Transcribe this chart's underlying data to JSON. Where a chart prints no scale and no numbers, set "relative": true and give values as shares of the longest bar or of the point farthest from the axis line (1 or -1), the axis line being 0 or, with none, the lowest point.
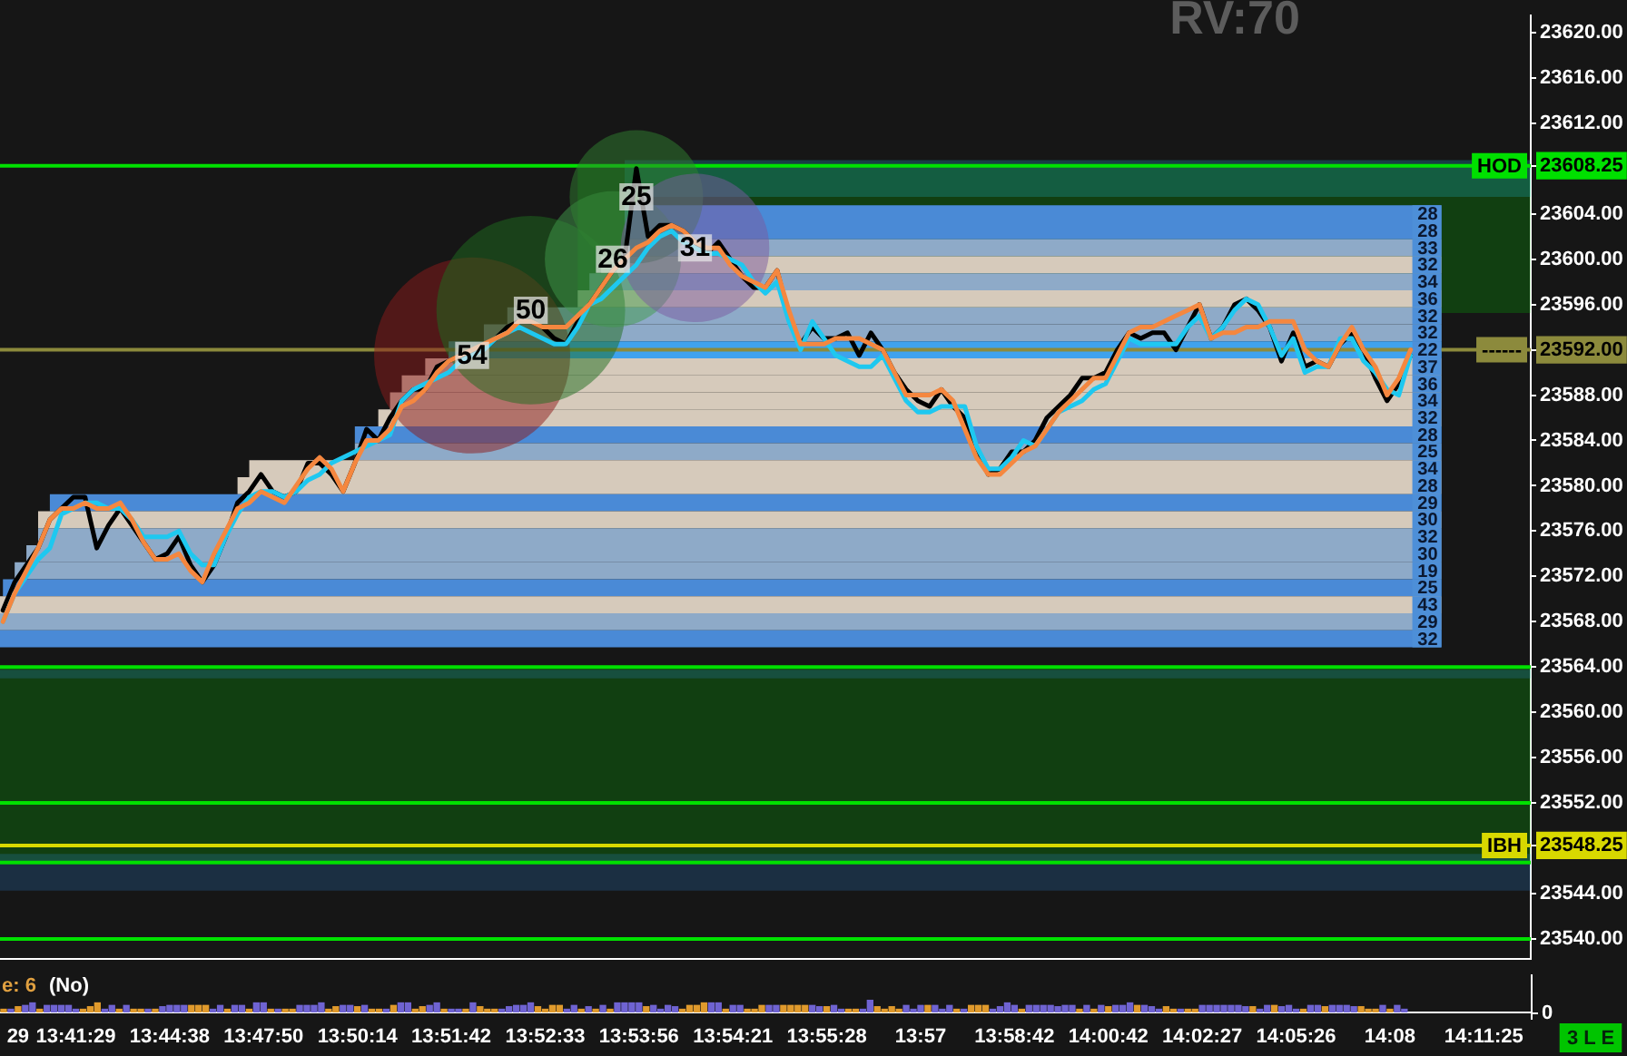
{
  "chart_data": [
    {
      "type": "line",
      "tick_labels": "y",
      "annotations": [
        "RV:70"
      ],
      "categories": [
        null,
        null,
        null,
        null,
        null,
        null,
        null,
        null,
        null,
        null,
        null,
        null,
        null,
        null,
        null,
        null,
        null,
        null,
        null,
        null,
        null,
        null,
        null,
        null,
        null,
        null,
        null,
        null,
        null,
        null,
        null,
        null,
        null,
        null,
        null,
        null,
        null,
        null,
        null,
        null,
        null,
        null,
        null,
        null,
        null,
        null,
        null,
        null,
        null,
        null,
        null,
        null,
        null,
        null,
        null,
        null,
        null,
        null,
        null,
        null,
        null,
        null,
        null,
        null,
        null,
        null,
        null,
        null,
        null,
        null,
        null,
        null,
        null,
        null,
        null,
        null,
        null,
        null,
        null,
        null,
        null,
        null,
        null,
        null,
        null,
        null,
        null,
        null,
        null,
        null,
        null,
        null,
        null,
        null,
        null,
        null,
        null,
        null,
        null,
        null,
        null,
        null,
        null,
        null,
        null,
        null,
        null,
        null,
        null,
        null,
        null,
        null,
        null,
        null,
        null,
        null,
        null,
        null,
        null,
        null,
        null,
        null,
        null,
        null,
        null,
        null,
        null,
        null,
        null,
        null,
        null
      ],
      "series": [
        {
          "type": "bubble",
          "values": [
            null,
            null,
            null,
            null,
            null,
            null,
            null,
            null,
            null,
            null,
            null,
            null,
            null,
            null,
            null,
            null,
            null,
            null,
            null,
            null,
            null,
            null,
            null,
            null,
            null,
            null,
            null,
            null,
            null,
            null,
            null,
            null,
            null,
            null,
            null,
            null,
            null,
            null,
            null,
            null,
            23591.5,
            null,
            null,
            null,
            null,
            23595.5,
            null,
            null,
            null,
            null,
            null,
            null,
            23600,
            null,
            23605.5,
            null,
            null,
            null,
            null,
            23601,
            null,
            null,
            null,
            null,
            null,
            null,
            null,
            null,
            null,
            null,
            null,
            null,
            null,
            null,
            null,
            null,
            null,
            null,
            null,
            null,
            null,
            null,
            null,
            null,
            null,
            null,
            null,
            null,
            null,
            null,
            null,
            null,
            null,
            null,
            null,
            null,
            null,
            null,
            null,
            null,
            null,
            null,
            null,
            null,
            null,
            null,
            null,
            null,
            null,
            null,
            null,
            null,
            null,
            null,
            null,
            null,
            null,
            null,
            null,
            null,
            null,
            null,
            null,
            null,
            null,
            null,
            null,
            null,
            null,
            null,
            null
          ],
          "sizes": [
            null,
            null,
            null,
            null,
            null,
            null,
            null,
            null,
            null,
            null,
            null,
            null,
            null,
            null,
            null,
            null,
            null,
            null,
            null,
            null,
            null,
            null,
            null,
            null,
            null,
            null,
            null,
            null,
            null,
            null,
            null,
            null,
            null,
            null,
            null,
            null,
            null,
            null,
            null,
            null,
            54,
            null,
            null,
            null,
            null,
            50,
            null,
            null,
            null,
            null,
            null,
            null,
            26,
            null,
            25,
            null,
            null,
            null,
            null,
            31,
            null,
            null,
            null,
            null,
            null,
            null,
            null,
            null,
            null,
            null,
            null,
            null,
            null,
            null,
            null,
            null,
            null,
            null,
            null,
            null,
            null,
            null,
            null,
            null,
            null,
            null,
            null,
            null,
            null,
            null,
            null,
            null,
            null,
            null,
            null,
            null,
            null,
            null,
            null,
            null,
            null,
            null,
            null,
            null,
            null,
            null,
            null,
            null,
            null,
            null,
            null,
            null,
            null,
            null,
            null,
            null,
            null,
            null,
            null,
            null,
            null,
            null,
            null,
            null,
            null,
            null,
            null,
            null,
            null,
            null,
            null
          ],
          "value_labels": [
            null,
            null,
            null,
            null,
            null,
            null,
            null,
            null,
            null,
            null,
            null,
            null,
            null,
            null,
            null,
            null,
            null,
            null,
            null,
            null,
            null,
            null,
            null,
            null,
            null,
            null,
            null,
            null,
            null,
            null,
            null,
            null,
            null,
            null,
            null,
            null,
            null,
            null,
            null,
            null,
            "54",
            null,
            null,
            null,
            null,
            "50",
            null,
            null,
            null,
            null,
            null,
            null,
            "26",
            null,
            "25",
            null,
            null,
            null,
            null,
            "31",
            null,
            null,
            null,
            null,
            null,
            null,
            null,
            null,
            null,
            null,
            null,
            null,
            null,
            null,
            null,
            null,
            null,
            null,
            null,
            null,
            null,
            null,
            null,
            null,
            null,
            null,
            null,
            null,
            null,
            null,
            null,
            null,
            null,
            null,
            null,
            null,
            null,
            null,
            null,
            null,
            null,
            null,
            null,
            null,
            null,
            null,
            null,
            null,
            null,
            null,
            null,
            null,
            null,
            null,
            null,
            null,
            null,
            null,
            null,
            null,
            null,
            null,
            null,
            null,
            null,
            null,
            null,
            null,
            null,
            null,
            null
          ],
          "colors": [
            null,
            null,
            null,
            null,
            null,
            null,
            null,
            null,
            null,
            null,
            null,
            null,
            null,
            null,
            null,
            null,
            null,
            null,
            null,
            null,
            null,
            null,
            null,
            null,
            null,
            null,
            null,
            null,
            null,
            null,
            null,
            null,
            null,
            null,
            null,
            null,
            null,
            null,
            null,
            null,
            "#8b1a1a",
            null,
            null,
            null,
            null,
            "#1e6b1e",
            null,
            null,
            null,
            null,
            null,
            null,
            "#3f9a4a",
            null,
            "#2f7f2f",
            null,
            null,
            null,
            null,
            "#7a5aa0",
            null,
            null,
            null,
            null,
            null,
            null,
            null,
            null,
            null,
            null,
            null,
            null,
            null,
            null,
            null,
            null,
            null,
            null,
            null,
            null,
            null,
            null,
            null,
            null,
            null,
            null,
            null,
            null,
            null,
            null,
            null,
            null,
            null,
            null,
            null,
            null,
            null,
            null,
            null,
            null,
            null,
            null,
            null,
            null,
            null,
            null,
            null,
            null,
            null,
            null,
            null,
            null,
            null,
            null,
            null,
            null,
            null,
            null,
            null,
            null,
            null,
            null,
            null,
            null,
            null,
            null,
            null,
            null,
            null,
            null,
            null
          ]
        },
        {
          "color": "#000000",
          "values": [
            23569,
            23571.5,
            23573,
            23574.5,
            23577,
            23578,
            23579,
            23579,
            23574.5,
            23576.5,
            23578,
            23576.5,
            23575,
            23573.5,
            23574,
            23575.5,
            23573,
            23571.5,
            23573,
            23575.5,
            23578.5,
            23579.5,
            23581,
            23579.5,
            23579,
            23579.5,
            23582,
            23582,
            23581,
            23579.5,
            23582,
            23585,
            23584,
            23586,
            23587.5,
            23588.5,
            23588.5,
            23590.5,
            23591,
            23591.5,
            23591.5,
            23592,
            23593,
            23594,
            23594.5,
            23594.5,
            23594,
            23593,
            23592.5,
            23594.5,
            23596,
            23597.5,
            23599,
            23600,
            23608,
            23602,
            23603,
            23603,
            23602.5,
            23601.5,
            23600.5,
            23601.5,
            23600,
            23598.5,
            23597.5,
            23597.5,
            23599,
            23595,
            23592.5,
            23594,
            23593,
            23593,
            23593.5,
            23591.5,
            23593.5,
            23592,
            23590,
            23588.5,
            23587.5,
            23587,
            23588.5,
            23587,
            23586,
            23583,
            23581,
            23581.5,
            23583,
            23583,
            23584,
            23586,
            23587,
            23588,
            23589.5,
            23589.5,
            23590,
            23592,
            23593.5,
            23593,
            23593.5,
            23593.5,
            23592,
            23594,
            23596,
            23593,
            23594,
            23596,
            23596.5,
            23595.5,
            23594,
            23591,
            23593.5,
            23590.5,
            23591,
            23590.5,
            23592.5,
            23593.5,
            23592,
            23589.5,
            23587.5,
            23589,
            23591.5,
            null,
            null,
            null,
            null,
            null,
            null,
            null,
            null,
            null,
            null
          ]
        },
        {
          "color": "#1ec8f0",
          "values": [
            23568,
            23570.5,
            23572,
            23573.5,
            23574.5,
            23577.5,
            23578,
            23578.5,
            23578.5,
            23578,
            23578,
            23577,
            23575.5,
            23575.5,
            23575.5,
            23576,
            23574,
            23573,
            23573,
            23575.5,
            23577.5,
            23579,
            23579.5,
            23579.5,
            23579,
            23579.5,
            23580.5,
            23581,
            23582,
            23582.5,
            23583,
            23583.5,
            23584,
            23584.5,
            23587.5,
            23588.5,
            23589,
            23589.5,
            23590,
            23591,
            23591.5,
            23592,
            23593,
            23593.5,
            23594,
            23593.5,
            23593,
            23592.5,
            23592.5,
            23594,
            23596,
            23596.5,
            23597.5,
            23598.5,
            23599.5,
            23601,
            23602,
            23602.5,
            23601.5,
            23601,
            23600.5,
            23600.5,
            23600,
            23599.5,
            23598,
            23597,
            23598,
            23594.5,
            23592,
            23594.5,
            23593,
            23591.5,
            23591,
            23590.5,
            23590.5,
            23591.5,
            23589.5,
            23587.5,
            23586.5,
            23586.5,
            23587,
            23587,
            23587,
            23583.5,
            23581.5,
            23581.5,
            23582.5,
            23584,
            23583.5,
            23585,
            23586.5,
            23587,
            23587.5,
            23588.5,
            23589,
            23591,
            23593,
            23592.5,
            23592.5,
            23592.5,
            23592.5,
            23594,
            23595,
            23593,
            23594,
            23595.5,
            23596.5,
            23596,
            23594,
            23591.5,
            23593,
            23590,
            23590.5,
            23590.5,
            23593,
            23593,
            23591,
            23590,
            23588.5,
            23588,
            23591.5,
            null,
            null,
            null,
            null,
            null,
            null,
            null,
            null,
            null,
            null
          ]
        },
        {
          "color": "#f5873f",
          "values": [
            23568,
            23570.5,
            23572.5,
            23574.5,
            23577,
            23578,
            23578,
            23578.5,
            23578,
            23578,
            23578.5,
            23577,
            23575,
            23573.5,
            23573.5,
            23574,
            23572.5,
            23571.5,
            23574,
            23576,
            23578,
            23578.5,
            23579.5,
            23579,
            23578.5,
            23580,
            23581.5,
            23582.5,
            23581.5,
            23579.5,
            23582,
            23584,
            23584,
            23585,
            23587,
            23587.5,
            23588.5,
            23590,
            23591,
            23591.5,
            23592,
            23592.5,
            23593,
            23593.5,
            23594.5,
            23594.5,
            23594,
            23594,
            23594,
            23595,
            23596,
            23597.5,
            23599,
            23600,
            23601,
            23601.5,
            23602.5,
            23603,
            23602.5,
            23601.5,
            23601,
            23601,
            23599.5,
            23598.5,
            23598,
            23597.5,
            23599,
            23595.5,
            23592.5,
            23592.5,
            23592.5,
            23593,
            23593,
            23593,
            23592.5,
            23592,
            23590,
            23588,
            23588,
            23588,
            23588.5,
            23587.5,
            23585,
            23582.5,
            23581,
            23581,
            23582,
            23583,
            23583.5,
            23585,
            23586.5,
            23587.5,
            23588.5,
            23589.5,
            23589.5,
            23591.5,
            23593.5,
            23594,
            23594,
            23594.5,
            23595,
            23595.5,
            23596,
            23593,
            23593.5,
            23593.5,
            23594,
            23594,
            23594.5,
            23594.5,
            23594.5,
            23592,
            23591,
            23590.5,
            23592.5,
            23594,
            23592,
            23590.5,
            23588,
            23589.5,
            23592,
            null,
            null,
            null,
            null,
            null,
            null,
            null,
            null,
            null,
            null
          ]
        }
      ],
      "ylim": [
        23538.25,
        23621.5
      ],
      "yticks": [
        {
          "value": 23540,
          "label": "23540.00"
        },
        {
          "value": 23544,
          "label": "23544.00"
        },
        {
          "value": 23548.25,
          "label": "23548.25"
        },
        {
          "value": 23552,
          "label": "23552.00"
        },
        {
          "value": 23556,
          "label": "23556.00"
        },
        {
          "value": 23560,
          "label": "23560.00"
        },
        {
          "value": 23564,
          "label": "23564.00"
        },
        {
          "value": 23568,
          "label": "23568.00"
        },
        {
          "value": 23572,
          "label": "23572.00"
        },
        {
          "value": 23576,
          "label": "23576.00"
        },
        {
          "value": 23580,
          "label": "23580.00"
        },
        {
          "value": 23584,
          "label": "23584.00"
        },
        {
          "value": 23588,
          "label": "23588.00"
        },
        {
          "value": 23592,
          "label": "23592.00"
        },
        {
          "value": 23596,
          "label": "23596.00"
        },
        {
          "value": 23600,
          "label": "23600.00"
        },
        {
          "value": 23604,
          "label": "23604.00"
        },
        {
          "value": 23608.25,
          "label": "23608.25"
        },
        {
          "value": 23612,
          "label": "23612.00"
        },
        {
          "value": 23616,
          "label": "23616.00"
        },
        {
          "value": 23620,
          "label": "23620.00"
        }
      ],
      "ref_lines": [
        {
          "axis": "y",
          "value": 23608.25,
          "label": "HOD",
          "color": "#00e000"
        },
        {
          "axis": "y",
          "value": 23592,
          "label": "------",
          "color": "#8c8a3c"
        },
        {
          "axis": "y",
          "value": 23564,
          "color": "#00e000"
        },
        {
          "axis": "y",
          "value": 23552,
          "color": "#00e000"
        },
        {
          "axis": "y",
          "value": 23548.25,
          "label": "IBH",
          "color": "#d8d800"
        },
        {
          "axis": "y",
          "value": 23546.75,
          "color": "#00e000"
        },
        {
          "axis": "y",
          "value": 23540,
          "color": "#00e000"
        }
      ],
      "bands": [
        {
          "axis": "y",
          "from": 23595.25,
          "to": 23608.25,
          "color": "#00d000"
        },
        {
          "axis": "y",
          "from": 23605.5,
          "to": 23608.75,
          "color": "#1ec8ec"
        },
        {
          "axis": "y",
          "from": 23546.75,
          "to": 23564,
          "color": "#00d000"
        },
        {
          "axis": "y",
          "from": 23563,
          "to": 23563.75,
          "color": "#2f88e0"
        },
        {
          "axis": "y",
          "from": 23544.25,
          "to": 23547.5,
          "color": "#2f88e0"
        },
        {
          "axis": "y",
          "from": 23603.25,
          "to": 23604.75,
          "label": "28",
          "color": "#4a8ad6"
        },
        {
          "axis": "y",
          "from": 23601.75,
          "to": 23603.25,
          "label": "28",
          "color": "#4a8ad6"
        },
        {
          "axis": "y",
          "from": 23600.25,
          "to": 23601.75,
          "label": "33",
          "color": "#8eaac8"
        },
        {
          "axis": "y",
          "from": 23598.75,
          "to": 23600.25,
          "label": "32",
          "color": "#d6cabb"
        },
        {
          "axis": "y",
          "from": 23597.25,
          "to": 23598.75,
          "label": "34",
          "color": "#8eaac8"
        },
        {
          "axis": "y",
          "from": 23595.75,
          "to": 23597.25,
          "label": "36",
          "color": "#d6cabb"
        },
        {
          "axis": "y",
          "from": 23594.25,
          "to": 23595.75,
          "label": "32",
          "color": "#8eaac8"
        },
        {
          "axis": "y",
          "from": 23592.75,
          "to": 23594.25,
          "label": "32",
          "color": "#8eaac8"
        },
        {
          "axis": "y",
          "from": 23591.25,
          "to": 23592.75,
          "label": "22",
          "color": "#3fa2ee"
        },
        {
          "axis": "y",
          "from": 23589.75,
          "to": 23591.25,
          "label": "37",
          "color": "#d6cabb"
        },
        {
          "axis": "y",
          "from": 23588.25,
          "to": 23589.75,
          "label": "36",
          "color": "#d6cabb"
        },
        {
          "axis": "y",
          "from": 23586.75,
          "to": 23588.25,
          "label": "34",
          "color": "#d6cabb"
        },
        {
          "axis": "y",
          "from": 23585.25,
          "to": 23586.75,
          "label": "32",
          "color": "#d6cabb"
        },
        {
          "axis": "y",
          "from": 23583.75,
          "to": 23585.25,
          "label": "28",
          "color": "#4a8ad6"
        },
        {
          "axis": "y",
          "from": 23582.25,
          "to": 23583.75,
          "label": "25",
          "color": "#8eaac8"
        },
        {
          "axis": "y",
          "from": 23580.75,
          "to": 23582.25,
          "label": "34",
          "color": "#d6cabb"
        },
        {
          "axis": "y",
          "from": 23579.25,
          "to": 23580.75,
          "label": "28",
          "color": "#d6cabb"
        },
        {
          "axis": "y",
          "from": 23577.75,
          "to": 23579.25,
          "label": "29",
          "color": "#4a8ad6"
        },
        {
          "axis": "y",
          "from": 23576.25,
          "to": 23577.75,
          "label": "30",
          "color": "#d6cabb"
        },
        {
          "axis": "y",
          "from": 23574.75,
          "to": 23576.25,
          "label": "32",
          "color": "#8eaac8"
        },
        {
          "axis": "y",
          "from": 23573.25,
          "to": 23574.75,
          "label": "30",
          "color": "#8eaac8"
        },
        {
          "axis": "y",
          "from": 23571.75,
          "to": 23573.25,
          "label": "19",
          "color": "#8eaac8"
        },
        {
          "axis": "y",
          "from": 23570.25,
          "to": 23571.75,
          "label": "25",
          "color": "#4a8ad6"
        },
        {
          "axis": "y",
          "from": 23568.75,
          "to": 23570.25,
          "label": "43",
          "color": "#d6cabb"
        },
        {
          "axis": "y",
          "from": 23567.25,
          "to": 23568.75,
          "label": "29",
          "color": "#8eaac8"
        },
        {
          "axis": "y",
          "from": 23565.75,
          "to": 23567.25,
          "label": "32",
          "color": "#4a8ad6"
        }
      ]
    },
    {
      "type": "bar",
      "relative": true,
      "annotations": [
        "e: 6",
        "(No)",
        "0",
        "3 L E"
      ],
      "categories": [
        null,
        null,
        "29",
        null,
        null,
        null,
        null,
        null,
        null,
        null,
        "13:41:29",
        null,
        null,
        null,
        null,
        null,
        null,
        null,
        null,
        null,
        null,
        null,
        null,
        "13:44:38",
        null,
        null,
        null,
        null,
        null,
        null,
        null,
        null,
        null,
        null,
        null,
        null,
        "13:47:50",
        null,
        null,
        null,
        null,
        null,
        null,
        null,
        null,
        null,
        null,
        null,
        null,
        "13:50:14",
        null,
        null,
        null,
        null,
        null,
        null,
        null,
        null,
        null,
        null,
        null,
        null,
        "13:51:42",
        null,
        null,
        null,
        null,
        null,
        null,
        null,
        null,
        null,
        null,
        null,
        null,
        "13:52:33",
        null,
        null,
        null,
        null,
        null,
        null,
        null,
        null,
        null,
        null,
        null,
        null,
        "13:53:56",
        null,
        null,
        null,
        null,
        null,
        null,
        null,
        null,
        null,
        null,
        null,
        null,
        "13:54:21",
        null,
        null,
        null,
        null,
        null,
        null,
        null,
        null,
        null,
        null,
        null,
        null,
        "13:55:28",
        null,
        null,
        null,
        null,
        null,
        null,
        null,
        null,
        null,
        null,
        null,
        null,
        "13:57",
        null,
        null,
        null,
        null,
        null,
        null,
        null,
        null,
        null,
        null,
        null,
        null,
        "13:58:42",
        null,
        null,
        null,
        null,
        null,
        null,
        null,
        null,
        null,
        null,
        null,
        null,
        "14:00:42",
        null,
        null,
        null,
        null,
        null,
        null,
        null,
        null,
        null,
        null,
        null,
        null,
        "14:02:27",
        null,
        null,
        null,
        null,
        null,
        null,
        null,
        null,
        null,
        null,
        null,
        null,
        "14:05:26",
        null,
        null,
        null,
        null,
        null,
        null,
        null,
        null,
        null,
        null,
        null,
        null,
        "14:08",
        null,
        null,
        null,
        null,
        null,
        null,
        null,
        null,
        null,
        null,
        null,
        null,
        "14:11:25",
        null,
        null,
        null,
        null,
        null,
        null
      ],
      "values": [
        0.25,
        0.25,
        0.45,
        0.55,
        0.75,
        0.25,
        0.55,
        0.55,
        0.55,
        0.55,
        0.25,
        0.25,
        0.45,
        0.75,
        0.25,
        0.55,
        0.25,
        0.55,
        0.25,
        0.25,
        0.25,
        0.25,
        0.45,
        0.55,
        0.55,
        0.55,
        0.55,
        0.55,
        0.55,
        0.25,
        0.55,
        0.25,
        0.55,
        0.55,
        0.25,
        0.75,
        0.75,
        0.25,
        0.25,
        0.25,
        0.25,
        0.55,
        0.55,
        0.55,
        0.75,
        0.25,
        0.45,
        0.55,
        0.55,
        0.45,
        0.55,
        0.25,
        0.25,
        0.25,
        0.55,
        0.75,
        0.75,
        0.25,
        0.45,
        0.55,
        0.75,
        0.25,
        0.25,
        0.25,
        0.25,
        0.75,
        0.45,
        0.25,
        0.25,
        0.25,
        0.45,
        0.55,
        0.55,
        0.75,
        0.45,
        0.25,
        0.55,
        0.55,
        0.25,
        0.55,
        0.25,
        0.45,
        0.25,
        0.55,
        0.25,
        0.75,
        0.75,
        0.75,
        0.75,
        0.45,
        0.55,
        0.25,
        0.55,
        0.45,
        0.25,
        0.55,
        0.55,
        0.75,
        0.75,
        0.75,
        0.25,
        0.55,
        0.55,
        0.25,
        0.25,
        0.55,
        0.55,
        0.55,
        0.55,
        0.55,
        0.55,
        0.55,
        0.55,
        0.45,
        0.45,
        0.55,
        0.25,
        0.25,
        0.25,
        0.25,
        1,
        0.45,
        0.25,
        0.45,
        0.25,
        0.55,
        0.25,
        0.55,
        0.55,
        0.55,
        0.25,
        0.55,
        0.25,
        0.25,
        0.55,
        0.55,
        0.55,
        0.25,
        0.45,
        0.75,
        0.55,
        0.25,
        0.55,
        0.55,
        0.55,
        0.55,
        0.45,
        0.55,
        0.55,
        0.25,
        0.55,
        0.25,
        0.55,
        0.45,
        0.55,
        0.55,
        0.75,
        0.55,
        0.55,
        0.45,
        0.25,
        0.45,
        0.25,
        0.25,
        0.25,
        0.25,
        0.55,
        0.55,
        0.55,
        0.55,
        0.55,
        0.55,
        0.45,
        0.45,
        0.25,
        0.55,
        0.55,
        0.45,
        0.55,
        0.25,
        0.25,
        0.55,
        0.55,
        0.45,
        0.55,
        0.55,
        0.55,
        0.45,
        0.45,
        0.25,
        0.25,
        0.55,
        0.25,
        0.55,
        0.25,
        null,
        null,
        null,
        null,
        null,
        null,
        null,
        null,
        null,
        null,
        null,
        null,
        null,
        null,
        null,
        null,
        null
      ],
      "colors": [
        "#e09a2c",
        "#6f63d2",
        "#e09a2c",
        "#6f63d2",
        "#6f63d2",
        "#e09a2c",
        "#6f63d2",
        "#6f63d2",
        "#6f63d2",
        "#6f63d2",
        "#6f63d2",
        "#e09a2c",
        "#e09a2c",
        "#e09a2c",
        "#6f63d2",
        "#6f63d2",
        "#e09a2c",
        "#6f63d2",
        "#e09a2c",
        "#e09a2c",
        "#6f63d2",
        "#e09a2c",
        "#6f63d2",
        "#6f63d2",
        "#6f63d2",
        "#6f63d2",
        "#e09a2c",
        "#e09a2c",
        "#e09a2c",
        "#6f63d2",
        "#6f63d2",
        "#e09a2c",
        "#6f63d2",
        "#6f63d2",
        "#e09a2c",
        "#6f63d2",
        "#6f63d2",
        "#e09a2c",
        "#6f63d2",
        "#e09a2c",
        "#e09a2c",
        "#6f63d2",
        "#6f63d2",
        "#6f63d2",
        "#6f63d2",
        "#e09a2c",
        "#e09a2c",
        "#6f63d2",
        "#6f63d2",
        "#e09a2c",
        "#6f63d2",
        "#e09a2c",
        "#e09a2c",
        "#6f63d2",
        "#e09a2c",
        "#6f63d2",
        "#6f63d2",
        "#e09a2c",
        "#e09a2c",
        "#6f63d2",
        "#6f63d2",
        "#e09a2c",
        "#6f63d2",
        "#6f63d2",
        "#e09a2c",
        "#6f63d2",
        "#e09a2c",
        "#e09a2c",
        "#e09a2c",
        "#6f63d2",
        "#6f63d2",
        "#6f63d2",
        "#6f63d2",
        "#6f63d2",
        "#e09a2c",
        "#e09a2c",
        "#e09a2c",
        "#e09a2c",
        "#6f63d2",
        "#6f63d2",
        "#e09a2c",
        "#6f63d2",
        "#e09a2c",
        "#6f63d2",
        "#e09a2c",
        "#6f63d2",
        "#6f63d2",
        "#6f63d2",
        "#6f63d2",
        "#e09a2c",
        "#6f63d2",
        "#6f63d2",
        "#6f63d2",
        "#6f63d2",
        "#e09a2c",
        "#e09a2c",
        "#e09a2c",
        "#e09a2c",
        "#6f63d2",
        "#6f63d2",
        "#e09a2c",
        "#6f63d2",
        "#6f63d2",
        "#e09a2c",
        "#e09a2c",
        "#e09a2c",
        "#6f63d2",
        "#6f63d2",
        "#e09a2c",
        "#e09a2c",
        "#e09a2c",
        "#e09a2c",
        "#6f63d2",
        "#6f63d2",
        "#e09a2c",
        "#6f63d2",
        "#6f63d2",
        "#e09a2c",
        "#e09a2c",
        "#6f63d2",
        "#6f63d2",
        "#e09a2c",
        "#e09a2c",
        "#e09a2c",
        "#e09a2c",
        "#6f63d2",
        "#6f63d2",
        "#6f63d2",
        "#e09a2c",
        "#6f63d2",
        "#6f63d2",
        "#6f63d2",
        "#e09a2c",
        "#6f63d2",
        "#e09a2c",
        "#e09a2c",
        "#e09a2c",
        "#6f63d2",
        "#6f63d2",
        "#6f63d2",
        "#6f63d2",
        "#e09a2c",
        "#6f63d2",
        "#6f63d2",
        "#6f63d2",
        "#6f63d2",
        "#6f63d2",
        "#6f63d2",
        "#6f63d2",
        "#e09a2c",
        "#6f63d2",
        "#e09a2c",
        "#6f63d2",
        "#e09a2c",
        "#6f63d2",
        "#6f63d2",
        "#6f63d2",
        "#e09a2c",
        "#6f63d2",
        "#6f63d2",
        "#6f63d2",
        "#e09a2c",
        "#e09a2c",
        "#6f63d2",
        "#e09a2c",
        "#e09a2c",
        "#6f63d2",
        "#6f63d2",
        "#6f63d2",
        "#6f63d2",
        "#6f63d2",
        "#6f63d2",
        "#6f63d2",
        "#e09a2c",
        "#6f63d2",
        "#6f63d2",
        "#e09a2c",
        "#6f63d2",
        "#6f63d2",
        "#6f63d2",
        "#e09a2c",
        "#6f63d2",
        "#6f63d2",
        "#e09a2c",
        "#6f63d2",
        "#6f63d2",
        "#6f63d2",
        "#6f63d2",
        "#e09a2c",
        "#e09a2c",
        "#e09a2c",
        "#6f63d2",
        "#e09a2c",
        "#6f63d2",
        "#6f63d2",
        null,
        null,
        null,
        null,
        null,
        null,
        null,
        null,
        null,
        null,
        null,
        null,
        null,
        null,
        null,
        null,
        null
      ]
    }
  ]
}
